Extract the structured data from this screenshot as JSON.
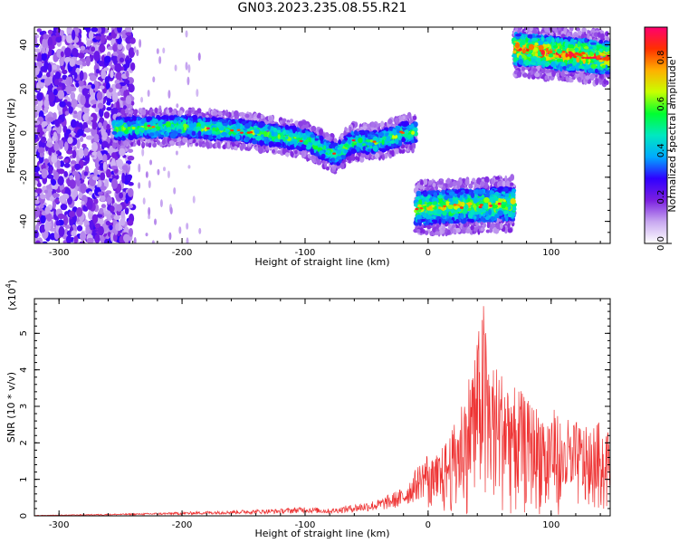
{
  "title": "GN03.2023.235.08.55.R21",
  "chart_data": [
    {
      "type": "heatmap",
      "xlabel": "Height of straight line (km)",
      "ylabel": "Frequency (Hz)",
      "xlim": [
        -320,
        148
      ],
      "ylim": [
        -50,
        48
      ],
      "xticks": [
        -300,
        -200,
        -100,
        0,
        100
      ],
      "yticks": [
        -40,
        -20,
        0,
        20,
        40
      ],
      "colorbar": {
        "label": "Normalized spectral amplitude",
        "range": [
          0,
          0.93
        ],
        "ticks": [
          "0.0",
          "0.2",
          "0.4",
          "0.6",
          "0.8"
        ],
        "colormap": [
          "#ffffff",
          "#c8a8f0",
          "#7b1fe0",
          "#3000ff",
          "#00aaff",
          "#00e8c0",
          "#00ff30",
          "#c8ff00",
          "#ffb000",
          "#ff3000",
          "#ff0070"
        ]
      },
      "features": [
        {
          "name": "noise",
          "x_range": [
            -320,
            -240
          ],
          "freq_range": [
            -50,
            48
          ],
          "amplitude": 0.12
        },
        {
          "name": "band-1",
          "x_range": [
            -255,
            -10
          ],
          "center_freq": [
            [
              -255,
              2
            ],
            [
              -200,
              3
            ],
            [
              -150,
              1
            ],
            [
              -100,
              -3
            ],
            [
              -75,
              -10
            ],
            [
              -62,
              -4
            ],
            [
              -40,
              -4
            ],
            [
              -20,
              0
            ],
            [
              -10,
              0
            ]
          ],
          "amplitude": 0.5
        },
        {
          "name": "band-2",
          "x_range": [
            -10,
            70
          ],
          "center_freq": [
            [
              -10,
              -34
            ],
            [
              70,
              -32
            ]
          ],
          "amplitude": 0.6
        },
        {
          "name": "band-3",
          "x_range": [
            70,
            148
          ],
          "center_freq": [
            [
              70,
              38
            ],
            [
              148,
              34
            ]
          ],
          "amplitude": 0.75
        }
      ]
    },
    {
      "type": "line",
      "xlabel": "Height of straight line (km)",
      "ylabel": "SNR (10 * v/v)",
      "y_multiplier": "(x10",
      "y_multiplier_exp": "4",
      "y_multiplier_close": ")",
      "xlim": [
        -320,
        148
      ],
      "ylim": [
        0,
        5.95
      ],
      "xticks": [
        -300,
        -200,
        -100,
        0,
        100
      ],
      "yticks": [
        0,
        1,
        2,
        3,
        4,
        5
      ],
      "color": "#ee3333",
      "series": [
        {
          "x": [
            -320,
            -280,
            -240,
            -200,
            -160,
            -120,
            -100,
            -80,
            -60,
            -40,
            -20,
            -10,
            0,
            10,
            20,
            30,
            40,
            45,
            50,
            60,
            70,
            80,
            90,
            100,
            110,
            120,
            130,
            140,
            148
          ],
          "y": [
            0.01,
            0.03,
            0.05,
            0.08,
            0.12,
            0.15,
            0.2,
            0.15,
            0.25,
            0.35,
            0.6,
            1.0,
            1.4,
            1.8,
            2.4,
            3.5,
            4.9,
            5.9,
            4.3,
            4.0,
            3.7,
            3.2,
            3.0,
            3.0,
            2.7,
            2.6,
            2.4,
            2.6,
            2.4
          ]
        }
      ]
    }
  ]
}
